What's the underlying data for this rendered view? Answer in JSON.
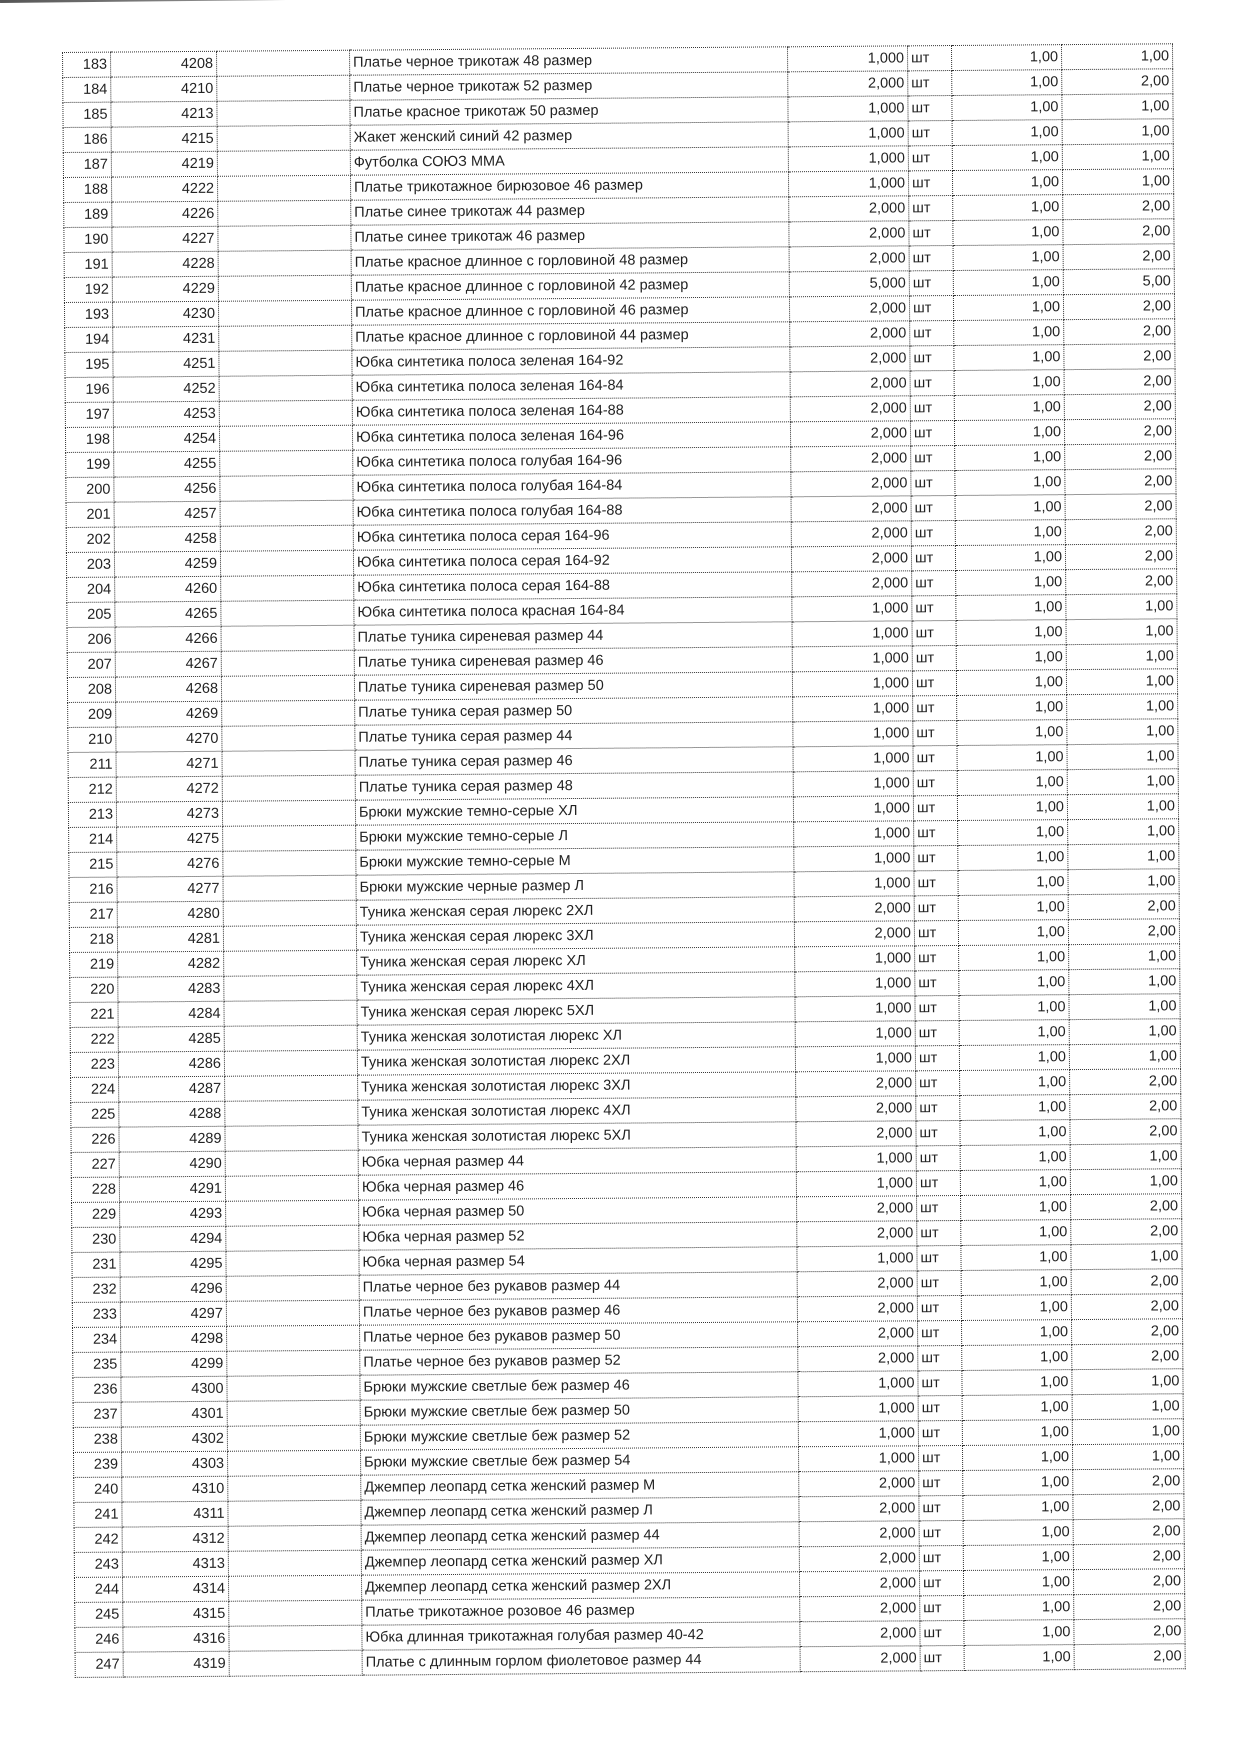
{
  "table": {
    "rows": [
      [
        "183",
        "4208",
        "Платье черное трикотаж 48 размер",
        "1,000",
        "шт",
        "1,00",
        "1,00"
      ],
      [
        "184",
        "4210",
        "Платье черное трикотаж 52 размер",
        "2,000",
        "шт",
        "1,00",
        "2,00"
      ],
      [
        "185",
        "4213",
        "Платье красное трикотаж 50 размер",
        "1,000",
        "шт",
        "1,00",
        "1,00"
      ],
      [
        "186",
        "4215",
        "Жакет женский синий 42 размер",
        "1,000",
        "шт",
        "1,00",
        "1,00"
      ],
      [
        "187",
        "4219",
        "Футболка СОЮЗ ММА",
        "1,000",
        "шт",
        "1,00",
        "1,00"
      ],
      [
        "188",
        "4222",
        "Платье трикотажное бирюзовое 46 размер",
        "1,000",
        "шт",
        "1,00",
        "1,00"
      ],
      [
        "189",
        "4226",
        "Платье синее трикотаж 44  размер",
        "2,000",
        "шт",
        "1,00",
        "2,00"
      ],
      [
        "190",
        "4227",
        "Платье синее трикотаж 46  размер",
        "2,000",
        "шт",
        "1,00",
        "2,00"
      ],
      [
        "191",
        "4228",
        "Платье красное длинное с горловиной 48 размер",
        "2,000",
        "шт",
        "1,00",
        "2,00"
      ],
      [
        "192",
        "4229",
        "Платье красное длинное с горловиной 42 размер",
        "5,000",
        "шт",
        "1,00",
        "5,00"
      ],
      [
        "193",
        "4230",
        "Платье красное длинное с горловиной 46 размер",
        "2,000",
        "шт",
        "1,00",
        "2,00"
      ],
      [
        "194",
        "4231",
        "Платье красное длинное с горловиной 44 размер",
        "2,000",
        "шт",
        "1,00",
        "2,00"
      ],
      [
        "195",
        "4251",
        "Юбка синтетика полоса зеленая 164-92",
        "2,000",
        "шт",
        "1,00",
        "2,00"
      ],
      [
        "196",
        "4252",
        "Юбка синтетика полоса зеленая 164-84",
        "2,000",
        "шт",
        "1,00",
        "2,00"
      ],
      [
        "197",
        "4253",
        "Юбка синтетика полоса зеленая 164-88",
        "2,000",
        "шт",
        "1,00",
        "2,00"
      ],
      [
        "198",
        "4254",
        "Юбка синтетика полоса зеленая 164-96",
        "2,000",
        "шт",
        "1,00",
        "2,00"
      ],
      [
        "199",
        "4255",
        "Юбка синтетика полоса голубая 164-96",
        "2,000",
        "шт",
        "1,00",
        "2,00"
      ],
      [
        "200",
        "4256",
        "Юбка синтетика полоса голубая 164-84",
        "2,000",
        "шт",
        "1,00",
        "2,00"
      ],
      [
        "201",
        "4257",
        "Юбка синтетика полоса голубая 164-88",
        "2,000",
        "шт",
        "1,00",
        "2,00"
      ],
      [
        "202",
        "4258",
        "Юбка синтетика полоса серая 164-96",
        "2,000",
        "шт",
        "1,00",
        "2,00"
      ],
      [
        "203",
        "4259",
        "Юбка синтетика полоса серая 164-92",
        "2,000",
        "шт",
        "1,00",
        "2,00"
      ],
      [
        "204",
        "4260",
        "Юбка синтетика полоса серая 164-88",
        "2,000",
        "шт",
        "1,00",
        "2,00"
      ],
      [
        "205",
        "4265",
        "Юбка синтетика полоса красная 164-84",
        "1,000",
        "шт",
        "1,00",
        "1,00"
      ],
      [
        "206",
        "4266",
        "Платье туника сиреневая размер 44",
        "1,000",
        "шт",
        "1,00",
        "1,00"
      ],
      [
        "207",
        "4267",
        "Платье туника сиреневая размер 46",
        "1,000",
        "шт",
        "1,00",
        "1,00"
      ],
      [
        "208",
        "4268",
        "Платье туника сиреневая размер 50",
        "1,000",
        "шт",
        "1,00",
        "1,00"
      ],
      [
        "209",
        "4269",
        "Платье туника серая размер 50",
        "1,000",
        "шт",
        "1,00",
        "1,00"
      ],
      [
        "210",
        "4270",
        "Платье туника серая размер 44",
        "1,000",
        "шт",
        "1,00",
        "1,00"
      ],
      [
        "211",
        "4271",
        "Платье туника серая размер 46",
        "1,000",
        "шт",
        "1,00",
        "1,00"
      ],
      [
        "212",
        "4272",
        "Платье туника серая размер 48",
        "1,000",
        "шт",
        "1,00",
        "1,00"
      ],
      [
        "213",
        "4273",
        "Брюки мужские темно-серые ХЛ",
        "1,000",
        "шт",
        "1,00",
        "1,00"
      ],
      [
        "214",
        "4275",
        "Брюки мужские темно-серые Л",
        "1,000",
        "шт",
        "1,00",
        "1,00"
      ],
      [
        "215",
        "4276",
        "Брюки мужские темно-серые М",
        "1,000",
        "шт",
        "1,00",
        "1,00"
      ],
      [
        "216",
        "4277",
        "Брюки мужские черные размер Л",
        "1,000",
        "шт",
        "1,00",
        "1,00"
      ],
      [
        "217",
        "4280",
        "Туника женская серая люрекс 2ХЛ",
        "2,000",
        "шт",
        "1,00",
        "2,00"
      ],
      [
        "218",
        "4281",
        "Туника женская серая люрекс 3ХЛ",
        "2,000",
        "шт",
        "1,00",
        "2,00"
      ],
      [
        "219",
        "4282",
        "Туника женская серая люрекс ХЛ",
        "1,000",
        "шт",
        "1,00",
        "1,00"
      ],
      [
        "220",
        "4283",
        "Туника женская серая люрекс 4ХЛ",
        "1,000",
        "шт",
        "1,00",
        "1,00"
      ],
      [
        "221",
        "4284",
        "Туника женская серая люрекс 5ХЛ",
        "1,000",
        "шт",
        "1,00",
        "1,00"
      ],
      [
        "222",
        "4285",
        "Туника женская золотистая люрекс ХЛ",
        "1,000",
        "шт",
        "1,00",
        "1,00"
      ],
      [
        "223",
        "4286",
        "Туника женская золотистая люрекс 2ХЛ",
        "1,000",
        "шт",
        "1,00",
        "1,00"
      ],
      [
        "224",
        "4287",
        "Туника женская золотистая люрекс 3ХЛ",
        "2,000",
        "шт",
        "1,00",
        "2,00"
      ],
      [
        "225",
        "4288",
        "Туника женская золотистая люрекс 4ХЛ",
        "2,000",
        "шт",
        "1,00",
        "2,00"
      ],
      [
        "226",
        "4289",
        "Туника женская золотистая люрекс 5ХЛ",
        "2,000",
        "шт",
        "1,00",
        "2,00"
      ],
      [
        "227",
        "4290",
        "Юбка черная размер 44",
        "1,000",
        "шт",
        "1,00",
        "1,00"
      ],
      [
        "228",
        "4291",
        "Юбка черная размер 46",
        "1,000",
        "шт",
        "1,00",
        "1,00"
      ],
      [
        "229",
        "4293",
        "Юбка черная размер 50",
        "2,000",
        "шт",
        "1,00",
        "2,00"
      ],
      [
        "230",
        "4294",
        "Юбка черная размер 52",
        "2,000",
        "шт",
        "1,00",
        "2,00"
      ],
      [
        "231",
        "4295",
        "Юбка черная размер 54",
        "1,000",
        "шт",
        "1,00",
        "1,00"
      ],
      [
        "232",
        "4296",
        "Платье черное без рукавов размер 44",
        "2,000",
        "шт",
        "1,00",
        "2,00"
      ],
      [
        "233",
        "4297",
        "Платье черное без рукавов размер 46",
        "2,000",
        "шт",
        "1,00",
        "2,00"
      ],
      [
        "234",
        "4298",
        "Платье черное без рукавов размер 50",
        "2,000",
        "шт",
        "1,00",
        "2,00"
      ],
      [
        "235",
        "4299",
        "Платье черное без рукавов размер 52",
        "2,000",
        "шт",
        "1,00",
        "2,00"
      ],
      [
        "236",
        "4300",
        "Брюки мужские светлые беж размер 46",
        "1,000",
        "шт",
        "1,00",
        "1,00"
      ],
      [
        "237",
        "4301",
        "Брюки мужские светлые беж размер 50",
        "1,000",
        "шт",
        "1,00",
        "1,00"
      ],
      [
        "238",
        "4302",
        "Брюки мужские светлые беж размер 52",
        "1,000",
        "шт",
        "1,00",
        "1,00"
      ],
      [
        "239",
        "4303",
        "Брюки мужские светлые беж размер 54",
        "1,000",
        "шт",
        "1,00",
        "1,00"
      ],
      [
        "240",
        "4310",
        "Джемпер леопард сетка женский размер М",
        "2,000",
        "шт",
        "1,00",
        "2,00"
      ],
      [
        "241",
        "4311",
        "Джемпер леопард сетка женский размер Л",
        "2,000",
        "шт",
        "1,00",
        "2,00"
      ],
      [
        "242",
        "4312",
        "Джемпер леопард сетка женский размер 44",
        "2,000",
        "шт",
        "1,00",
        "2,00"
      ],
      [
        "243",
        "4313",
        "Джемпер леопард сетка женский размер ХЛ",
        "2,000",
        "шт",
        "1,00",
        "2,00"
      ],
      [
        "244",
        "4314",
        "Джемпер леопард сетка женский размер 2ХЛ",
        "2,000",
        "шт",
        "1,00",
        "2,00"
      ],
      [
        "245",
        "4315",
        "Платье трикотажное розовое 46 размер",
        "2,000",
        "шт",
        "1,00",
        "2,00"
      ],
      [
        "246",
        "4316",
        "Юбка длинная трикотажная голубая размер 40-42",
        "2,000",
        "шт",
        "1,00",
        "2,00"
      ],
      [
        "247",
        "4319",
        "Платье с длинным горлом фиолетовое размер 44",
        "2,000",
        "шт",
        "1,00",
        "2,00"
      ]
    ]
  }
}
